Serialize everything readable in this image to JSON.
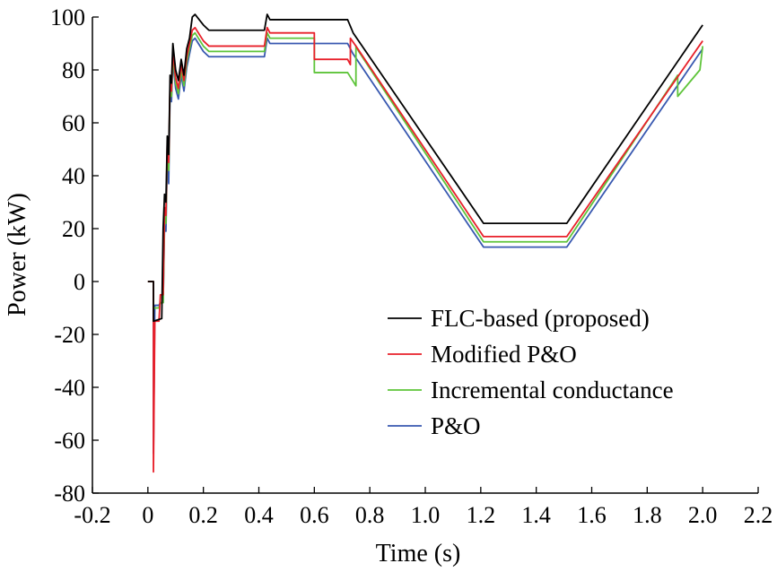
{
  "chart_data": {
    "type": "line",
    "title": "",
    "xlabel": "Time (s)",
    "ylabel": "Power (kW)",
    "xlim": [
      -0.2,
      2.2
    ],
    "ylim": [
      -80,
      100
    ],
    "x_ticks": [
      "-0.2",
      "0",
      "0.2",
      "0.4",
      "0.6",
      "0.8",
      "1.0",
      "1.2",
      "1.4",
      "1.6",
      "1.8",
      "2.0",
      "2.2"
    ],
    "y_ticks": [
      "-80",
      "-60",
      "-40",
      "-20",
      "0",
      "20",
      "40",
      "60",
      "80",
      "100"
    ],
    "grid": false,
    "legend_position": "bottom-right",
    "series": [
      {
        "name": "FLC-based (proposed)",
        "color": "#000000",
        "points": [
          [
            0.0,
            0
          ],
          [
            0.02,
            0
          ],
          [
            0.02,
            -15
          ],
          [
            0.05,
            -14
          ],
          [
            0.055,
            20
          ],
          [
            0.06,
            33
          ],
          [
            0.065,
            30
          ],
          [
            0.07,
            55
          ],
          [
            0.075,
            48
          ],
          [
            0.08,
            78
          ],
          [
            0.085,
            75
          ],
          [
            0.09,
            90
          ],
          [
            0.095,
            85
          ],
          [
            0.1,
            80
          ],
          [
            0.11,
            76
          ],
          [
            0.12,
            84
          ],
          [
            0.13,
            78
          ],
          [
            0.14,
            88
          ],
          [
            0.15,
            92
          ],
          [
            0.16,
            100
          ],
          [
            0.17,
            101
          ],
          [
            0.2,
            97
          ],
          [
            0.22,
            95
          ],
          [
            0.42,
            95
          ],
          [
            0.43,
            101
          ],
          [
            0.44,
            99
          ],
          [
            0.72,
            99
          ],
          [
            0.74,
            94
          ],
          [
            1.21,
            22
          ],
          [
            1.51,
            22
          ],
          [
            2.0,
            97
          ]
        ]
      },
      {
        "name": "Modified P&O",
        "color": "#e8202a",
        "points": [
          [
            0.0,
            0
          ],
          [
            0.02,
            0
          ],
          [
            0.02,
            -72
          ],
          [
            0.025,
            -15
          ],
          [
            0.04,
            -15
          ],
          [
            0.045,
            -5
          ],
          [
            0.055,
            -5
          ],
          [
            0.06,
            28
          ],
          [
            0.065,
            25
          ],
          [
            0.07,
            53
          ],
          [
            0.075,
            45
          ],
          [
            0.08,
            76
          ],
          [
            0.085,
            72
          ],
          [
            0.09,
            88
          ],
          [
            0.095,
            82
          ],
          [
            0.1,
            77
          ],
          [
            0.11,
            73
          ],
          [
            0.12,
            82
          ],
          [
            0.13,
            76
          ],
          [
            0.14,
            85
          ],
          [
            0.15,
            90
          ],
          [
            0.16,
            95
          ],
          [
            0.17,
            96
          ],
          [
            0.2,
            91
          ],
          [
            0.22,
            89
          ],
          [
            0.42,
            89
          ],
          [
            0.43,
            96
          ],
          [
            0.44,
            94
          ],
          [
            0.6,
            94
          ],
          [
            0.6,
            84
          ],
          [
            0.72,
            84
          ],
          [
            0.73,
            82
          ],
          [
            0.73,
            92
          ],
          [
            0.75,
            89
          ],
          [
            1.21,
            17
          ],
          [
            1.51,
            17
          ],
          [
            2.0,
            91
          ]
        ]
      },
      {
        "name": "Incremental conductance",
        "color": "#5ec43a",
        "points": [
          [
            0.0,
            0
          ],
          [
            0.02,
            0
          ],
          [
            0.02,
            -10
          ],
          [
            0.04,
            -10
          ],
          [
            0.045,
            -8
          ],
          [
            0.055,
            -8
          ],
          [
            0.06,
            24
          ],
          [
            0.065,
            22
          ],
          [
            0.07,
            50
          ],
          [
            0.075,
            42
          ],
          [
            0.08,
            74
          ],
          [
            0.085,
            70
          ],
          [
            0.09,
            86
          ],
          [
            0.095,
            80
          ],
          [
            0.1,
            75
          ],
          [
            0.11,
            71
          ],
          [
            0.12,
            80
          ],
          [
            0.13,
            74
          ],
          [
            0.14,
            83
          ],
          [
            0.15,
            88
          ],
          [
            0.16,
            93
          ],
          [
            0.17,
            94
          ],
          [
            0.2,
            89
          ],
          [
            0.22,
            87
          ],
          [
            0.42,
            87
          ],
          [
            0.43,
            94
          ],
          [
            0.44,
            92
          ],
          [
            0.6,
            92
          ],
          [
            0.6,
            79
          ],
          [
            0.72,
            79
          ],
          [
            0.75,
            74
          ],
          [
            0.75,
            89
          ],
          [
            0.76,
            87
          ],
          [
            1.21,
            15
          ],
          [
            1.51,
            15
          ],
          [
            1.91,
            78
          ],
          [
            1.91,
            70
          ],
          [
            1.99,
            80
          ],
          [
            2.0,
            89
          ]
        ]
      },
      {
        "name": "P&O",
        "color": "#3858b0",
        "points": [
          [
            0.0,
            0
          ],
          [
            0.02,
            0
          ],
          [
            0.02,
            -65
          ],
          [
            0.025,
            -9
          ],
          [
            0.04,
            -9
          ],
          [
            0.045,
            -8
          ],
          [
            0.055,
            -8
          ],
          [
            0.06,
            21
          ],
          [
            0.065,
            19
          ],
          [
            0.07,
            46
          ],
          [
            0.075,
            37
          ],
          [
            0.08,
            72
          ],
          [
            0.085,
            68
          ],
          [
            0.09,
            84
          ],
          [
            0.095,
            78
          ],
          [
            0.1,
            73
          ],
          [
            0.11,
            69
          ],
          [
            0.12,
            78
          ],
          [
            0.13,
            72
          ],
          [
            0.14,
            81
          ],
          [
            0.15,
            86
          ],
          [
            0.16,
            91
          ],
          [
            0.17,
            92
          ],
          [
            0.2,
            87
          ],
          [
            0.22,
            85
          ],
          [
            0.42,
            85
          ],
          [
            0.43,
            92
          ],
          [
            0.44,
            90
          ],
          [
            0.72,
            90
          ],
          [
            0.74,
            86
          ],
          [
            1.21,
            13
          ],
          [
            1.51,
            13
          ],
          [
            2.0,
            88
          ]
        ]
      }
    ]
  }
}
